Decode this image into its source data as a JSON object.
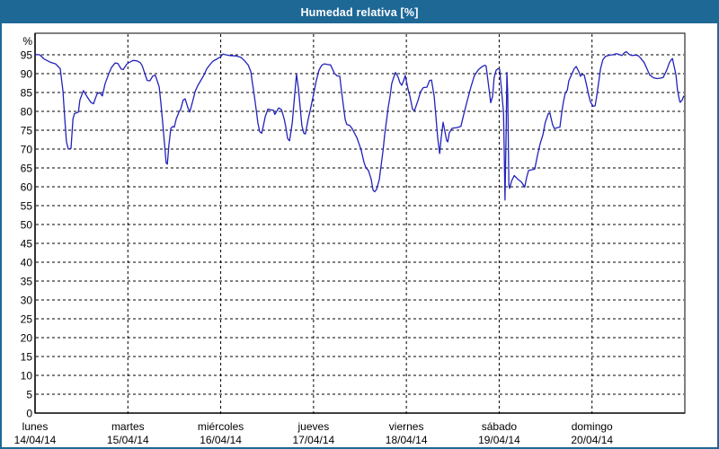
{
  "window": {
    "title": "Humedad relativa [%]"
  },
  "colors": {
    "titlebar_bg": "#1e6896",
    "frame_border": "#1e6896",
    "plot_bg": "#ffffff",
    "line": "#2222bb",
    "grid": "#000000",
    "axis": "#000000",
    "label_text": "#000000"
  },
  "chart_data": {
    "type": "line",
    "title": "Humedad relativa [%]",
    "ylabel": "%",
    "ylim": [
      0,
      100
    ],
    "yticks": [
      0,
      5,
      10,
      15,
      20,
      25,
      30,
      35,
      40,
      45,
      50,
      55,
      60,
      65,
      70,
      75,
      80,
      85,
      90,
      95
    ],
    "grid": true,
    "grid_style": "dashed",
    "legend_position": "none",
    "x_unit": "hours",
    "xlim": [
      0,
      168
    ],
    "days": [
      {
        "name": "lunes",
        "date": "14/04/14"
      },
      {
        "name": "martes",
        "date": "15/04/14"
      },
      {
        "name": "miércoles",
        "date": "16/04/14"
      },
      {
        "name": "jueves",
        "date": "17/04/14"
      },
      {
        "name": "viernes",
        "date": "18/04/14"
      },
      {
        "name": "sábado",
        "date": "19/04/14"
      },
      {
        "name": "domingo",
        "date": "20/04/14"
      }
    ],
    "series": [
      {
        "name": "Humedad relativa",
        "color": "#2222bb",
        "points": [
          [
            0,
            95.1
          ],
          [
            1.2,
            95
          ],
          [
            2.3,
            93.9
          ],
          [
            4,
            93
          ],
          [
            5.3,
            92.6
          ],
          [
            6.5,
            91.3
          ],
          [
            7.2,
            85.5
          ],
          [
            7.7,
            78
          ],
          [
            8.1,
            72
          ],
          [
            8.6,
            70
          ],
          [
            9.3,
            70.2
          ],
          [
            9.8,
            78
          ],
          [
            10.2,
            79.4
          ],
          [
            11.2,
            79.8
          ],
          [
            11.6,
            83
          ],
          [
            12.5,
            85.5
          ],
          [
            13.5,
            83.8
          ],
          [
            14.4,
            82.4
          ],
          [
            15.1,
            82
          ],
          [
            16,
            84.6
          ],
          [
            16.7,
            85
          ],
          [
            17.4,
            84.1
          ],
          [
            18.1,
            87.3
          ],
          [
            19.1,
            90.1
          ],
          [
            19.8,
            91.7
          ],
          [
            20.7,
            92.8
          ],
          [
            21.4,
            92.7
          ],
          [
            22.3,
            91.2
          ],
          [
            22.8,
            91.1
          ],
          [
            23.7,
            92.5
          ],
          [
            24.4,
            93
          ],
          [
            25.3,
            93.5
          ],
          [
            26.3,
            93.4
          ],
          [
            27.2,
            92.9
          ],
          [
            27.7,
            92.1
          ],
          [
            28.1,
            90.9
          ],
          [
            28.6,
            89.3
          ],
          [
            29,
            88.2
          ],
          [
            29.7,
            88.1
          ],
          [
            30.4,
            89.3
          ],
          [
            31.1,
            89.6
          ],
          [
            32.1,
            86.5
          ],
          [
            32.5,
            82.5
          ],
          [
            33,
            77
          ],
          [
            33.5,
            71
          ],
          [
            33.9,
            66.3
          ],
          [
            34.2,
            66
          ],
          [
            34.6,
            71
          ],
          [
            35.1,
            75.5
          ],
          [
            35.6,
            76
          ],
          [
            36,
            75.8
          ],
          [
            36.5,
            78
          ],
          [
            37.2,
            79.8
          ],
          [
            37.6,
            80.4
          ],
          [
            38.3,
            83
          ],
          [
            38.8,
            83.3
          ],
          [
            39.5,
            81
          ],
          [
            40,
            79.8
          ],
          [
            40.7,
            82.5
          ],
          [
            41.4,
            85.3
          ],
          [
            42.1,
            86.9
          ],
          [
            42.8,
            88.1
          ],
          [
            43.7,
            89.7
          ],
          [
            44.4,
            91.3
          ],
          [
            45.3,
            92.5
          ],
          [
            46,
            93.3
          ],
          [
            46.9,
            93.8
          ],
          [
            47.9,
            94.4
          ],
          [
            48.6,
            95.2
          ],
          [
            49.3,
            95
          ],
          [
            50.2,
            94.8
          ],
          [
            52,
            94.7
          ],
          [
            53.2,
            94.3
          ],
          [
            54.1,
            93.5
          ],
          [
            55.1,
            92.3
          ],
          [
            55.8,
            90.5
          ],
          [
            56.2,
            87.5
          ],
          [
            56.7,
            84.1
          ],
          [
            57.2,
            80.2
          ],
          [
            57.6,
            77
          ],
          [
            58.1,
            74.6
          ],
          [
            58.6,
            74.2
          ],
          [
            59,
            76
          ],
          [
            59.5,
            78.6
          ],
          [
            60.2,
            80.6
          ],
          [
            60.9,
            80.4
          ],
          [
            61.6,
            80.3
          ],
          [
            62,
            79.2
          ],
          [
            63,
            80.9
          ],
          [
            63.7,
            80.5
          ],
          [
            64.4,
            78
          ],
          [
            64.8,
            76
          ],
          [
            65.3,
            72.8
          ],
          [
            65.8,
            72.2
          ],
          [
            66.5,
            77
          ],
          [
            66.9,
            81.7
          ],
          [
            67.4,
            87.7
          ],
          [
            67.6,
            89.8
          ],
          [
            68.1,
            86
          ],
          [
            68.5,
            81.5
          ],
          [
            69,
            76.2
          ],
          [
            69.5,
            74.2
          ],
          [
            69.9,
            74
          ],
          [
            70.6,
            77.8
          ],
          [
            71.3,
            81
          ],
          [
            72,
            84.5
          ],
          [
            72.7,
            88.1
          ],
          [
            73.4,
            90.9
          ],
          [
            74.1,
            92.2
          ],
          [
            74.8,
            92.6
          ],
          [
            75.7,
            92.4
          ],
          [
            76.4,
            92.3
          ],
          [
            77.4,
            90.1
          ],
          [
            78.1,
            89.4
          ],
          [
            78.8,
            89.3
          ],
          [
            79.2,
            85.7
          ],
          [
            79.7,
            81.7
          ],
          [
            80.2,
            77.8
          ],
          [
            80.6,
            76.5
          ],
          [
            81.3,
            76.3
          ],
          [
            82,
            75.4
          ],
          [
            83.2,
            73
          ],
          [
            84.3,
            69.8
          ],
          [
            85,
            66.7
          ],
          [
            85.5,
            65.1
          ],
          [
            86.2,
            64.3
          ],
          [
            86.9,
            62
          ],
          [
            87.4,
            59.1
          ],
          [
            87.8,
            58.7
          ],
          [
            88.3,
            59.3
          ],
          [
            89,
            61.9
          ],
          [
            89.5,
            65.9
          ],
          [
            90,
            69.8
          ],
          [
            90.4,
            73.8
          ],
          [
            90.8,
            77
          ],
          [
            91.3,
            81
          ],
          [
            91.8,
            84.1
          ],
          [
            92.2,
            87.3
          ],
          [
            92.7,
            88.9
          ],
          [
            93.2,
            90.3
          ],
          [
            93.9,
            89
          ],
          [
            94.3,
            87.7
          ],
          [
            94.8,
            86.9
          ],
          [
            95.3,
            88.1
          ],
          [
            95.7,
            89.5
          ],
          [
            96.4,
            86
          ],
          [
            96.9,
            84.1
          ],
          [
            97.6,
            80.6
          ],
          [
            98.1,
            80.2
          ],
          [
            99,
            82.9
          ],
          [
            99.7,
            85.3
          ],
          [
            100.4,
            86.3
          ],
          [
            101.3,
            86.4
          ],
          [
            102,
            88.2
          ],
          [
            102.5,
            88.3
          ],
          [
            103.2,
            84
          ],
          [
            103.6,
            79
          ],
          [
            104.1,
            73
          ],
          [
            104.6,
            68.8
          ],
          [
            105,
            73
          ],
          [
            105.5,
            77.1
          ],
          [
            106,
            74.5
          ],
          [
            106.4,
            72.3
          ],
          [
            106.7,
            71.9
          ],
          [
            107.1,
            74.3
          ],
          [
            107.8,
            75.5
          ],
          [
            109,
            75.7
          ],
          [
            110.1,
            76
          ],
          [
            110.8,
            79
          ],
          [
            111.8,
            83
          ],
          [
            112.7,
            86.5
          ],
          [
            113.6,
            89.5
          ],
          [
            114.6,
            91
          ],
          [
            115.5,
            91.8
          ],
          [
            116.2,
            92.2
          ],
          [
            116.6,
            92.1
          ],
          [
            117.3,
            86.5
          ],
          [
            117.8,
            82.3
          ],
          [
            118.3,
            84
          ],
          [
            118.7,
            88.9
          ],
          [
            119.2,
            90.9
          ],
          [
            119.7,
            91.3
          ],
          [
            120.1,
            91.2
          ],
          [
            120.6,
            85.7
          ],
          [
            121.1,
            79.8
          ],
          [
            121.3,
            70
          ],
          [
            121.5,
            56.5
          ],
          [
            121.8,
            75
          ],
          [
            122,
            90.3
          ],
          [
            122.2,
            85
          ],
          [
            122.5,
            60.5
          ],
          [
            122.7,
            59.6
          ],
          [
            123.2,
            61.5
          ],
          [
            123.9,
            63
          ],
          [
            124.8,
            62
          ],
          [
            125.7,
            61.3
          ],
          [
            126.6,
            59.9
          ],
          [
            127.1,
            62.5
          ],
          [
            127.6,
            64.3
          ],
          [
            129.2,
            64.7
          ],
          [
            129.9,
            68.3
          ],
          [
            130.6,
            71.4
          ],
          [
            131.3,
            73.8
          ],
          [
            131.9,
            77
          ],
          [
            132.7,
            79.4
          ],
          [
            133.1,
            79.6
          ],
          [
            133.8,
            76.5
          ],
          [
            134.3,
            75.4
          ],
          [
            135,
            75.7
          ],
          [
            135.7,
            75.8
          ],
          [
            136.2,
            79.8
          ],
          [
            136.6,
            82.5
          ],
          [
            137.1,
            84.9
          ],
          [
            137.6,
            85.6
          ],
          [
            138,
            88.1
          ],
          [
            138.7,
            89.7
          ],
          [
            139.4,
            91.3
          ],
          [
            139.9,
            91.9
          ],
          [
            140.6,
            90.5
          ],
          [
            141,
            89.3
          ],
          [
            141.5,
            89.8
          ],
          [
            142,
            89.6
          ],
          [
            142.7,
            86.5
          ],
          [
            143.1,
            84.5
          ],
          [
            143.6,
            82.5
          ],
          [
            144.3,
            81.3
          ],
          [
            144.8,
            81.5
          ],
          [
            145.2,
            84
          ],
          [
            145.7,
            87.5
          ],
          [
            146.2,
            91.3
          ],
          [
            146.8,
            93.7
          ],
          [
            147.5,
            94.6
          ],
          [
            148.5,
            94.9
          ],
          [
            149.4,
            95
          ],
          [
            150.3,
            95.3
          ],
          [
            151,
            95.1
          ],
          [
            151.7,
            94.8
          ],
          [
            152.4,
            95.6
          ],
          [
            152.9,
            95.8
          ],
          [
            153.6,
            95.1
          ],
          [
            154.3,
            94.8
          ],
          [
            155.2,
            94.9
          ],
          [
            155.9,
            94.8
          ],
          [
            156.6,
            94.1
          ],
          [
            157.5,
            92.9
          ],
          [
            158.2,
            91.3
          ],
          [
            158.9,
            89.7
          ],
          [
            159.9,
            88.9
          ],
          [
            160.8,
            88.7
          ],
          [
            161.7,
            88.8
          ],
          [
            162.4,
            89
          ],
          [
            163.3,
            90.9
          ],
          [
            164,
            92.9
          ],
          [
            164.5,
            93.7
          ],
          [
            164.8,
            94
          ],
          [
            165.7,
            89.7
          ],
          [
            166.1,
            85.7
          ],
          [
            166.6,
            82.9
          ],
          [
            166.8,
            82.4
          ],
          [
            167.3,
            83
          ],
          [
            167.7,
            84
          ]
        ]
      }
    ]
  }
}
